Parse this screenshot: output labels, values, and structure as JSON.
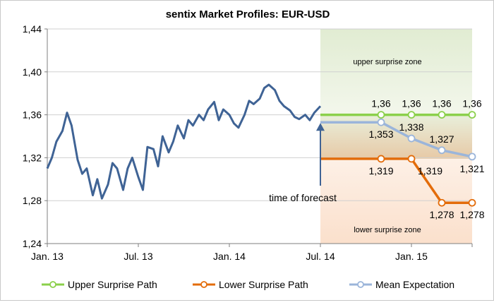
{
  "chart_data": {
    "type": "line",
    "title": "sentix Market Profiles: EUR-USD",
    "xlabel": "",
    "ylabel": "",
    "ylim": [
      1.24,
      1.44
    ],
    "yticks": [
      "1,24",
      "1,28",
      "1,32",
      "1,36",
      "1,40",
      "1,44"
    ],
    "yticks_values": [
      1.24,
      1.28,
      1.32,
      1.36,
      1.4,
      1.44
    ],
    "xticks": [
      "Jan. 13",
      "Jul. 13",
      "Jan. 14",
      "Jul. 14",
      "Jan. 15"
    ],
    "xticks_months": [
      0,
      6,
      12,
      18,
      24
    ],
    "x_range_months": [
      0,
      28
    ],
    "grid": "horizontal",
    "legend_position": "bottom",
    "zones": {
      "upper": {
        "label": "upper surprise zone",
        "color": "#e4edd6"
      },
      "lower": {
        "label": "lower surprise zone",
        "color": "#fbe3d2"
      }
    },
    "forecast_annotation": "time of forecast",
    "history": {
      "name": "",
      "color": "#3f6395",
      "months": [
        0,
        0.3,
        0.6,
        1,
        1.3,
        1.6,
        2,
        2.3,
        2.6,
        3,
        3.3,
        3.6,
        4,
        4.3,
        4.6,
        5,
        5.3,
        5.6,
        6,
        6.3,
        6.6,
        7,
        7.3,
        7.6,
        8,
        8.3,
        8.6,
        9,
        9.3,
        9.6,
        10,
        10.3,
        10.6,
        11,
        11.3,
        11.6,
        12,
        12.3,
        12.6,
        13,
        13.3,
        13.6,
        14,
        14.3,
        14.6,
        15,
        15.3,
        15.6,
        16,
        16.3,
        16.6,
        17,
        17.3,
        17.6,
        18
      ],
      "values": [
        1.31,
        1.32,
        1.335,
        1.345,
        1.362,
        1.35,
        1.318,
        1.305,
        1.31,
        1.285,
        1.3,
        1.282,
        1.295,
        1.315,
        1.31,
        1.29,
        1.31,
        1.32,
        1.302,
        1.29,
        1.33,
        1.328,
        1.312,
        1.34,
        1.325,
        1.335,
        1.35,
        1.338,
        1.355,
        1.35,
        1.36,
        1.355,
        1.365,
        1.372,
        1.355,
        1.365,
        1.36,
        1.352,
        1.348,
        1.36,
        1.373,
        1.37,
        1.375,
        1.385,
        1.388,
        1.383,
        1.373,
        1.368,
        1.364,
        1.358,
        1.356,
        1.36,
        1.355,
        1.362,
        1.368
      ]
    },
    "series": [
      {
        "name": "Upper Surprise Path",
        "color": "#8bd04b",
        "months": [
          18,
          22,
          24,
          26,
          28
        ],
        "values": [
          1.36,
          1.36,
          1.36,
          1.36,
          1.36
        ],
        "labels": [
          "",
          "1,36",
          "1,36",
          "1,36",
          "1,36"
        ],
        "label_pos": [
          "none",
          "above",
          "above",
          "above",
          "above"
        ]
      },
      {
        "name": "Mean Expectation",
        "color": "#9bb5da",
        "months": [
          18,
          22,
          24,
          26,
          28
        ],
        "values": [
          1.353,
          1.353,
          1.338,
          1.327,
          1.321
        ],
        "labels": [
          "",
          "1,353",
          "1,338",
          "1,327",
          "1,321"
        ],
        "label_pos": [
          "none",
          "below",
          "above",
          "above",
          "below"
        ]
      },
      {
        "name": "Lower Surprise Path",
        "color": "#e36c0a",
        "months": [
          18,
          22,
          24,
          26,
          28
        ],
        "values": [
          1.319,
          1.319,
          1.319,
          1.278,
          1.278
        ],
        "labels": [
          "",
          "1,319",
          "1,319",
          "1,278",
          "1,278"
        ],
        "label_pos": [
          "none",
          "below",
          "right",
          "below",
          "below"
        ]
      }
    ]
  }
}
